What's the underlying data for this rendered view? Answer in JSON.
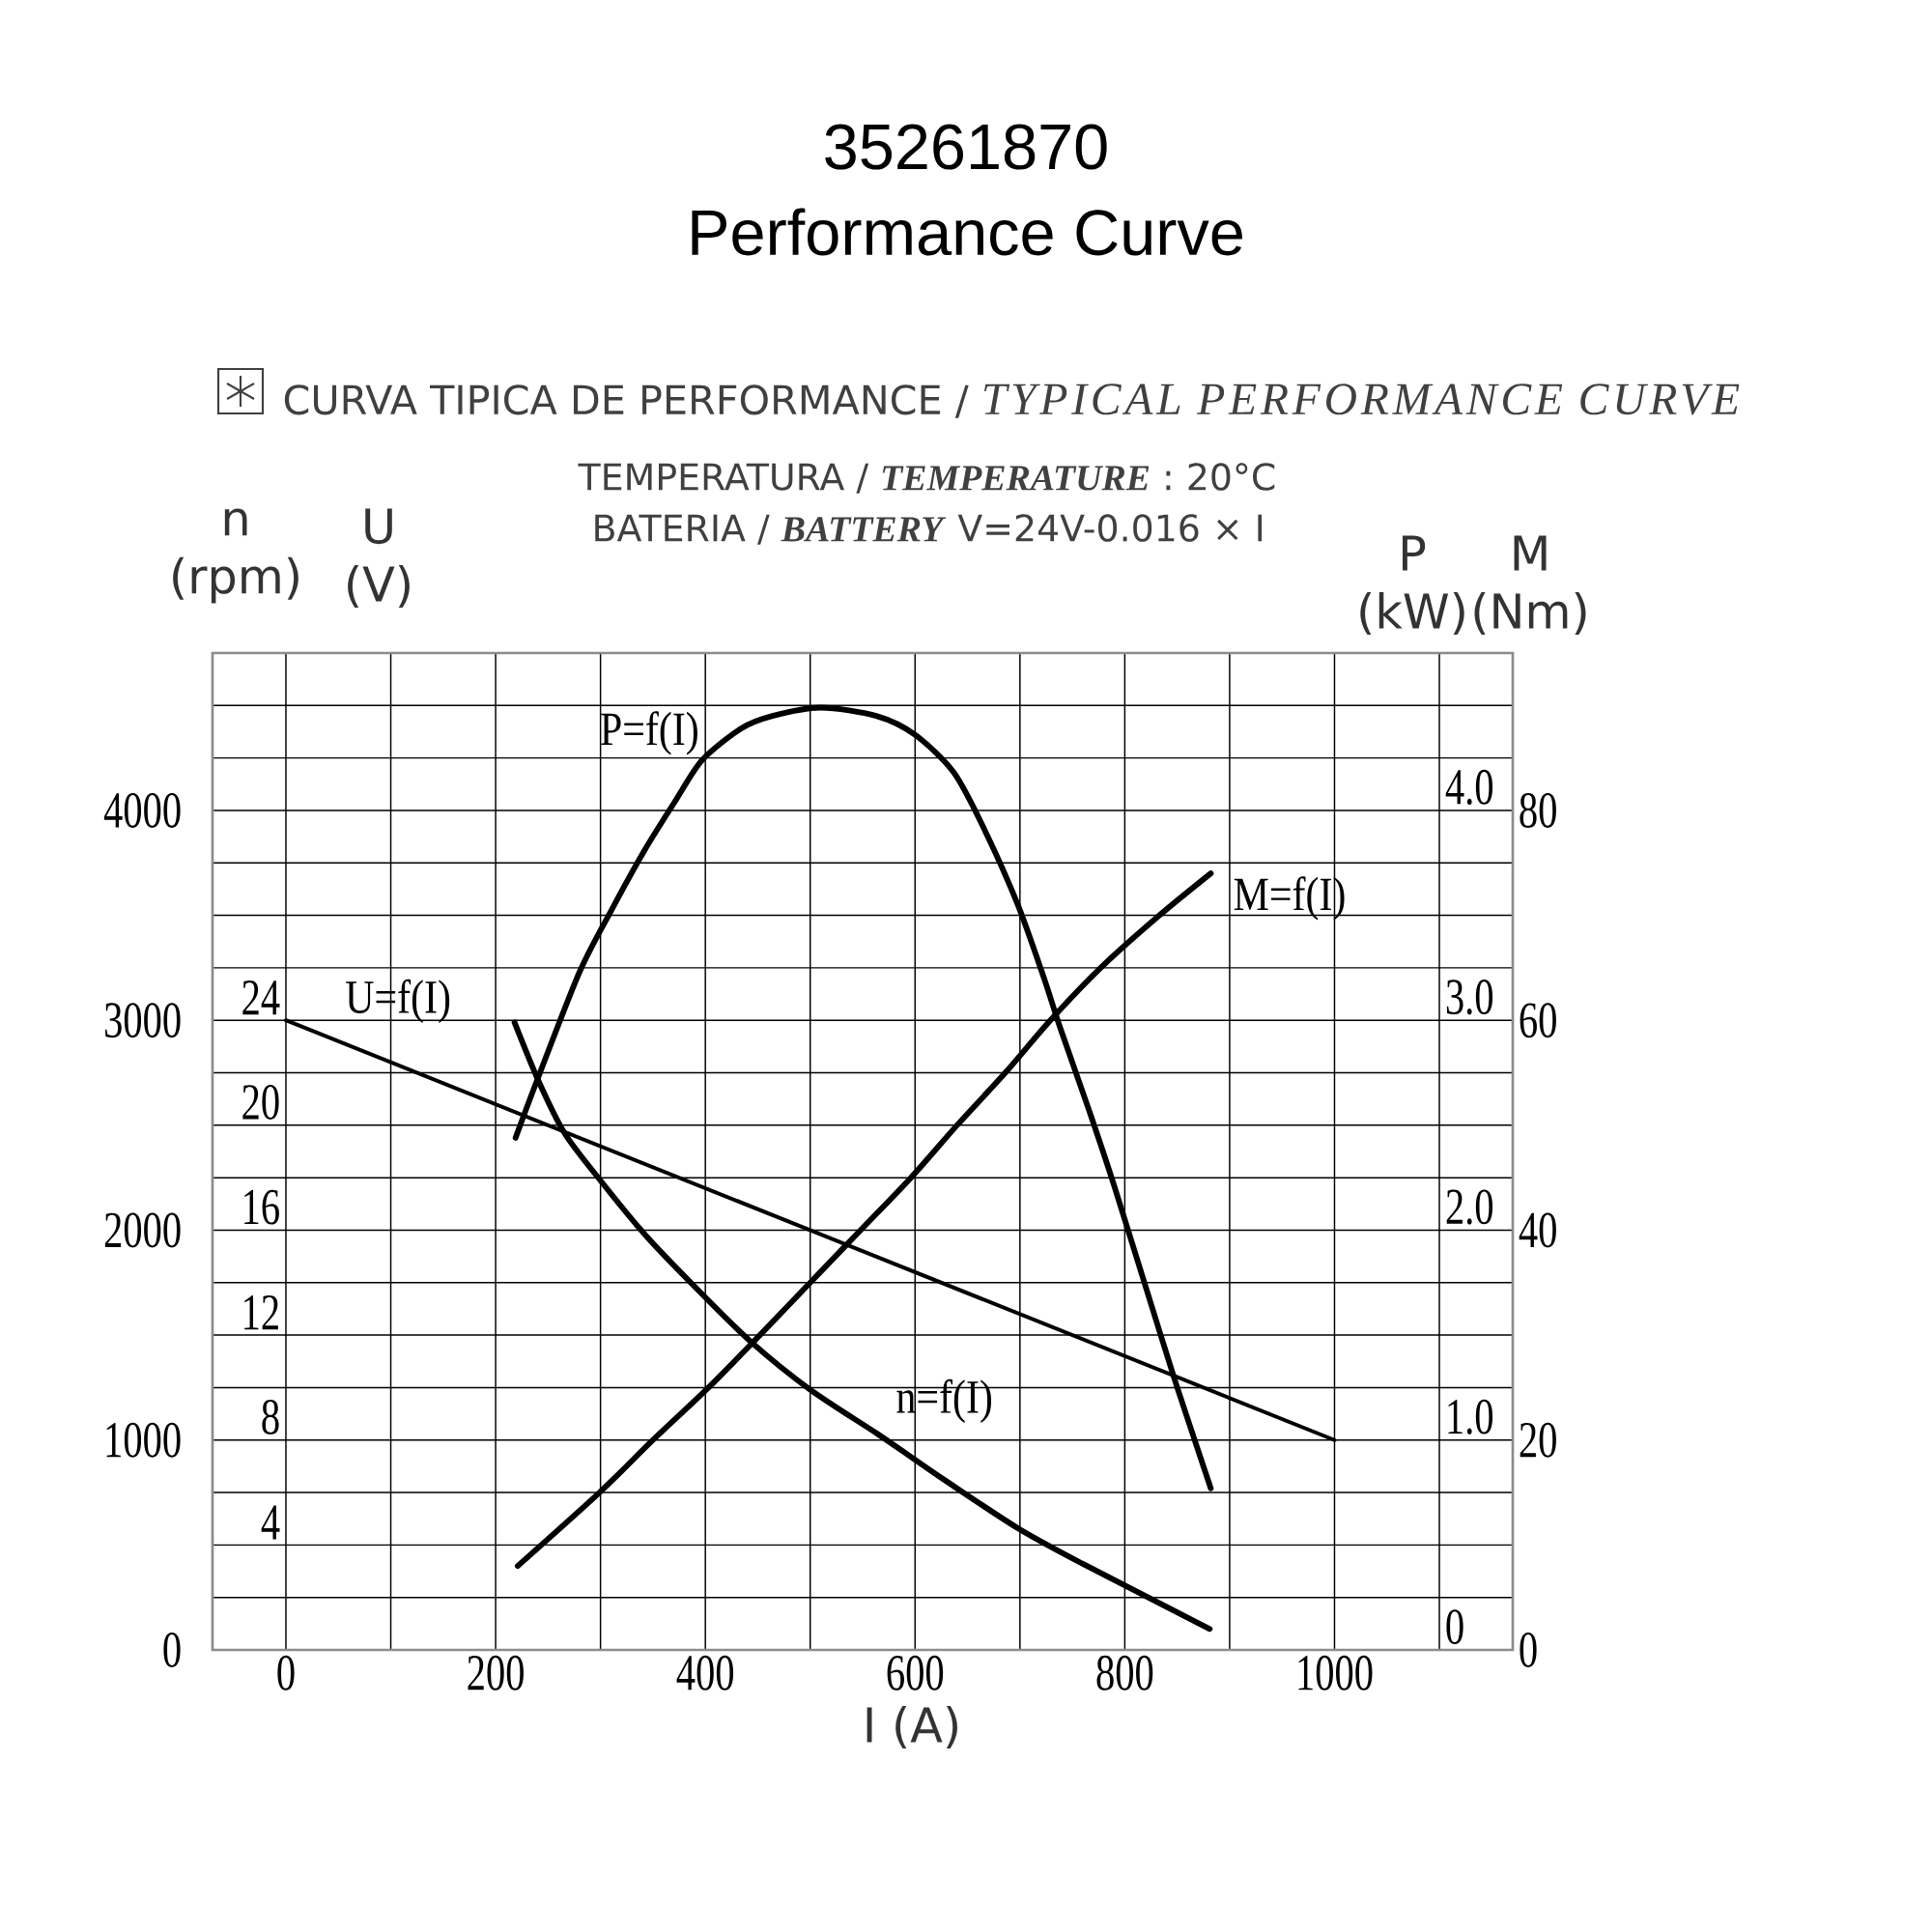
{
  "chart_data": [
    {
      "type": "line",
      "title": "35261870",
      "subtitle": "Performance Curve",
      "annotations": [
        "CURVA TIPICA DE PERFORMANCE / *TYPICAL PERFORMANCE CURVE*",
        "TEMPERATURA / *TEMPERATURE* : 20°C",
        "BATERIA / *BATTERY* V=24V-0.016 × I"
      ],
      "xlabel": "I (A)",
      "ylabel": "n (rpm)",
      "y2label": "P (kW)",
      "y3label": "U (V)",
      "xlim": [
        -70,
        1170
      ],
      "xticks": [
        0,
        200,
        400,
        600,
        800,
        1000
      ],
      "ylim": [
        0,
        4750
      ],
      "yticks": [
        0,
        1000,
        2000,
        3000,
        4000
      ],
      "y2lim": [
        0,
        4.75
      ],
      "y2ticks": [
        0,
        {
          "value": 1,
          "label": "1.0"
        },
        {
          "value": 2,
          "label": "2.0"
        },
        {
          "value": 3,
          "label": "3.0"
        },
        {
          "value": 4,
          "label": "4.0"
        }
      ],
      "y3lim": [
        0,
        38
      ],
      "y3ticks": [
        4,
        8,
        12,
        16,
        20,
        24
      ],
      "grid": true,
      "series": [
        {
          "name": "n=f(I)",
          "color": "#000000",
          "x": [
            218,
            241,
            266,
            301,
            344,
            394,
            443,
            500,
            564,
            596,
            628,
            698,
            760,
            881
          ],
          "values": [
            2990,
            2710,
            2460,
            2230,
            1970,
            1710,
            1470,
            1240,
            1030,
            920,
            810,
            580,
            410,
            100
          ]
        },
        {
          "name": "U=f(I)",
          "color": "#000000",
          "axis": "y3",
          "x": [
            0,
            1000
          ],
          "values": [
            24,
            8
          ]
        },
        {
          "name": "P=f(I)",
          "color": "#000000",
          "axis": "y2",
          "x": [
            219,
            240,
            280,
            311,
            342,
            372,
            397,
            434,
            464,
            510,
            563,
            600,
            637,
            667,
            698,
            723,
            738,
            766,
            790,
            833,
            852,
            882
          ],
          "values": [
            2.44,
            2.72,
            3.23,
            3.53,
            3.81,
            4.05,
            4.24,
            4.39,
            4.45,
            4.49,
            4.45,
            4.36,
            4.18,
            3.9,
            3.55,
            3.2,
            2.97,
            2.57,
            2.21,
            1.52,
            1.22,
            0.77
          ]
        }
      ]
    },
    {
      "type": "line",
      "ylabel": "M (Nm)",
      "xlim": [
        -70,
        1170
      ],
      "ylim": [
        0,
        95
      ],
      "yticks": [
        0,
        20,
        40,
        60,
        80
      ],
      "tick_labels": "y",
      "series": [
        {
          "name": "M=f(I)",
          "color": "#000000",
          "x": [
            221,
            299,
            350,
            403,
            452,
            500,
            548,
            596,
            640,
            686,
            729,
            777,
            833,
            882
          ],
          "values": [
            8,
            15,
            20,
            25,
            30,
            35,
            40,
            45,
            50,
            55,
            60,
            65,
            70,
            74
          ]
        }
      ]
    }
  ]
}
